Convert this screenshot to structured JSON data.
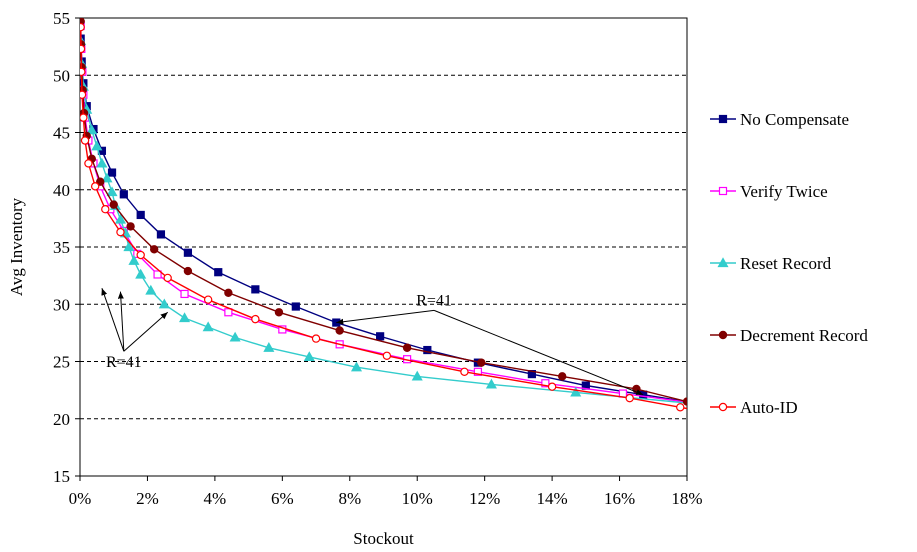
{
  "chart_data": {
    "type": "line",
    "title": "",
    "xlabel": "Stockout",
    "ylabel": "Avg Inventory",
    "xlim": [
      0,
      18
    ],
    "ylim": [
      15,
      55
    ],
    "x_ticks": [
      "0%",
      "2%",
      "4%",
      "6%",
      "8%",
      "10%",
      "12%",
      "14%",
      "16%",
      "18%"
    ],
    "y_ticks": [
      "15",
      "20",
      "25",
      "30",
      "35",
      "40",
      "45",
      "50",
      "55"
    ],
    "grid": "horizontal dashed",
    "legend_position": "right",
    "series": [
      {
        "name": "No Compensate",
        "color": "#000080",
        "marker": "square-filled",
        "x": [
          0.02,
          0.05,
          0.1,
          0.2,
          0.4,
          0.65,
          0.95,
          1.3,
          1.8,
          2.4,
          3.2,
          4.1,
          5.2,
          6.4,
          7.6,
          8.9,
          10.3,
          11.8,
          13.4,
          15.0,
          16.7
        ],
        "y": [
          53.2,
          51.2,
          49.3,
          47.3,
          45.3,
          43.4,
          41.5,
          39.6,
          37.8,
          36.1,
          34.5,
          32.8,
          31.3,
          29.8,
          28.4,
          27.2,
          26.0,
          24.9,
          23.9,
          22.9,
          22.1
        ]
      },
      {
        "name": "Verify Twice",
        "color": "#ff00ff",
        "marker": "square-open",
        "x": [
          0.02,
          0.04,
          0.07,
          0.1,
          0.15,
          0.25,
          0.4,
          0.6,
          0.9,
          1.3,
          1.7,
          2.3,
          3.1,
          4.4,
          6.0,
          7.7,
          9.7,
          11.8,
          13.8,
          16.1
        ],
        "y": [
          54.3,
          52.3,
          50.3,
          48.3,
          46.3,
          44.3,
          42.3,
          40.3,
          38.3,
          36.4,
          34.4,
          32.6,
          30.9,
          29.3,
          27.8,
          26.5,
          25.2,
          24.1,
          23.1,
          22.2
        ]
      },
      {
        "name": "Reset Record",
        "color": "#33cccc",
        "marker": "triangle-filled",
        "x": [
          0.02,
          0.05,
          0.1,
          0.2,
          0.35,
          0.5,
          0.65,
          0.8,
          0.95,
          1.05,
          1.2,
          1.35,
          1.45,
          1.6,
          1.8,
          2.1,
          2.5,
          3.1,
          3.8,
          4.6,
          5.6,
          6.8,
          8.2,
          10.0,
          12.2,
          14.7
        ],
        "y": [
          53.0,
          51.0,
          49.0,
          47.0,
          45.2,
          43.8,
          42.3,
          41.0,
          39.8,
          38.6,
          37.4,
          36.2,
          35.0,
          33.8,
          32.6,
          31.2,
          30.0,
          28.8,
          28.0,
          27.1,
          26.2,
          25.4,
          24.5,
          23.7,
          23.0,
          22.3
        ]
      },
      {
        "name": "Decrement Record",
        "color": "#800000",
        "marker": "circle-filled",
        "x": [
          0.02,
          0.03,
          0.05,
          0.08,
          0.12,
          0.2,
          0.35,
          0.6,
          1.0,
          1.5,
          2.2,
          3.2,
          4.4,
          5.9,
          7.7,
          9.7,
          11.9,
          14.3,
          16.5,
          18.0
        ],
        "y": [
          54.7,
          52.7,
          50.7,
          48.7,
          46.7,
          44.7,
          42.7,
          40.7,
          38.7,
          36.8,
          34.8,
          32.9,
          31.0,
          29.3,
          27.7,
          26.2,
          24.9,
          23.7,
          22.6,
          21.5
        ]
      },
      {
        "name": "Auto-ID",
        "color": "#ff0000",
        "marker": "circle-open",
        "x": [
          0.02,
          0.03,
          0.04,
          0.06,
          0.1,
          0.15,
          0.25,
          0.45,
          0.75,
          1.2,
          1.8,
          2.6,
          3.8,
          5.2,
          7.0,
          9.1,
          11.4,
          14.0,
          16.3,
          17.8
        ],
        "y": [
          54.2,
          52.3,
          50.3,
          48.3,
          46.3,
          44.3,
          42.3,
          40.3,
          38.3,
          36.3,
          34.3,
          32.3,
          30.4,
          28.7,
          27.0,
          25.5,
          24.1,
          22.8,
          21.8,
          21.0
        ]
      }
    ],
    "annotations": [
      {
        "text": "R=41",
        "x": 10.5,
        "y": 29.9,
        "arrow_targets": [
          [
            7.6,
            28.4
          ],
          [
            16.7,
            22.1
          ]
        ]
      },
      {
        "text": "R=41",
        "x": 1.3,
        "y": 24.5,
        "arrow_targets": [
          [
            0.65,
            31.4
          ],
          [
            1.2,
            31.1
          ],
          [
            2.6,
            29.3
          ]
        ]
      }
    ]
  }
}
